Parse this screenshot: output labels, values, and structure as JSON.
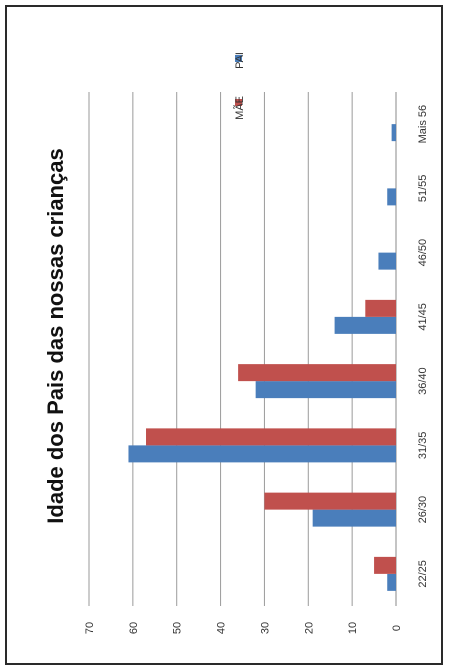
{
  "chart_data": {
    "type": "bar",
    "orientation": "horizontal-bars (figure rotated 90 degrees)",
    "title": "Idade dos Pais das nossas crianças",
    "categories": [
      "22/25",
      "26/30",
      "31/35",
      "36/40",
      "41/45",
      "46/50",
      "51/55",
      "Mais 56"
    ],
    "series": [
      {
        "name": "PAI",
        "color": "#4a7ebb",
        "values": [
          2,
          19,
          61,
          32,
          14,
          4,
          2,
          1
        ]
      },
      {
        "name": "MÃE",
        "color": "#c0504d",
        "values": [
          5,
          30,
          57,
          36,
          7,
          0,
          0,
          0
        ]
      }
    ],
    "value_axis": {
      "min": 0,
      "max": 70,
      "ticks": [
        0,
        10,
        20,
        30,
        40,
        50,
        60,
        70
      ]
    },
    "grid": true,
    "legend_position": "top-right"
  }
}
